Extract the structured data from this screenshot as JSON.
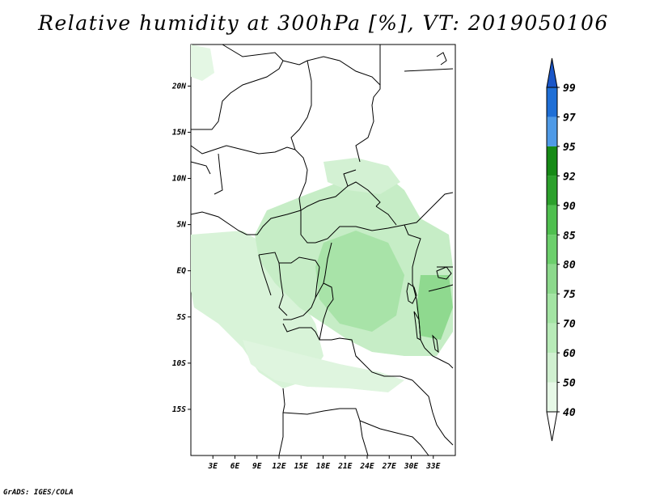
{
  "title": "Relative humidity at 300hPa [%], VT: 2019050106",
  "credit": "GrADS: IGES/COLA",
  "map": {
    "lon_range": [
      0,
      36
    ],
    "lat_range": [
      -20,
      24.5
    ],
    "x_ticks": [
      "3E",
      "6E",
      "9E",
      "12E",
      "15E",
      "18E",
      "21E",
      "24E",
      "27E",
      "30E",
      "33E"
    ],
    "y_ticks": [
      "20N",
      "15N",
      "10N",
      "5N",
      "EQ",
      "5S",
      "10S",
      "15S"
    ]
  },
  "legend": {
    "levels": [
      "40",
      "50",
      "60",
      "70",
      "75",
      "80",
      "85",
      "90",
      "92",
      "95",
      "97",
      "99"
    ],
    "colors": [
      "#ffffff",
      "#e6f8e6",
      "#d0f0d0",
      "#b8ebb8",
      "#a3e4a3",
      "#8cd98c",
      "#6ccf6c",
      "#4fbf4f",
      "#2ca02c",
      "#168a16",
      "#4f9ae6",
      "#1f6fd6",
      "#1a56c8"
    ]
  }
}
